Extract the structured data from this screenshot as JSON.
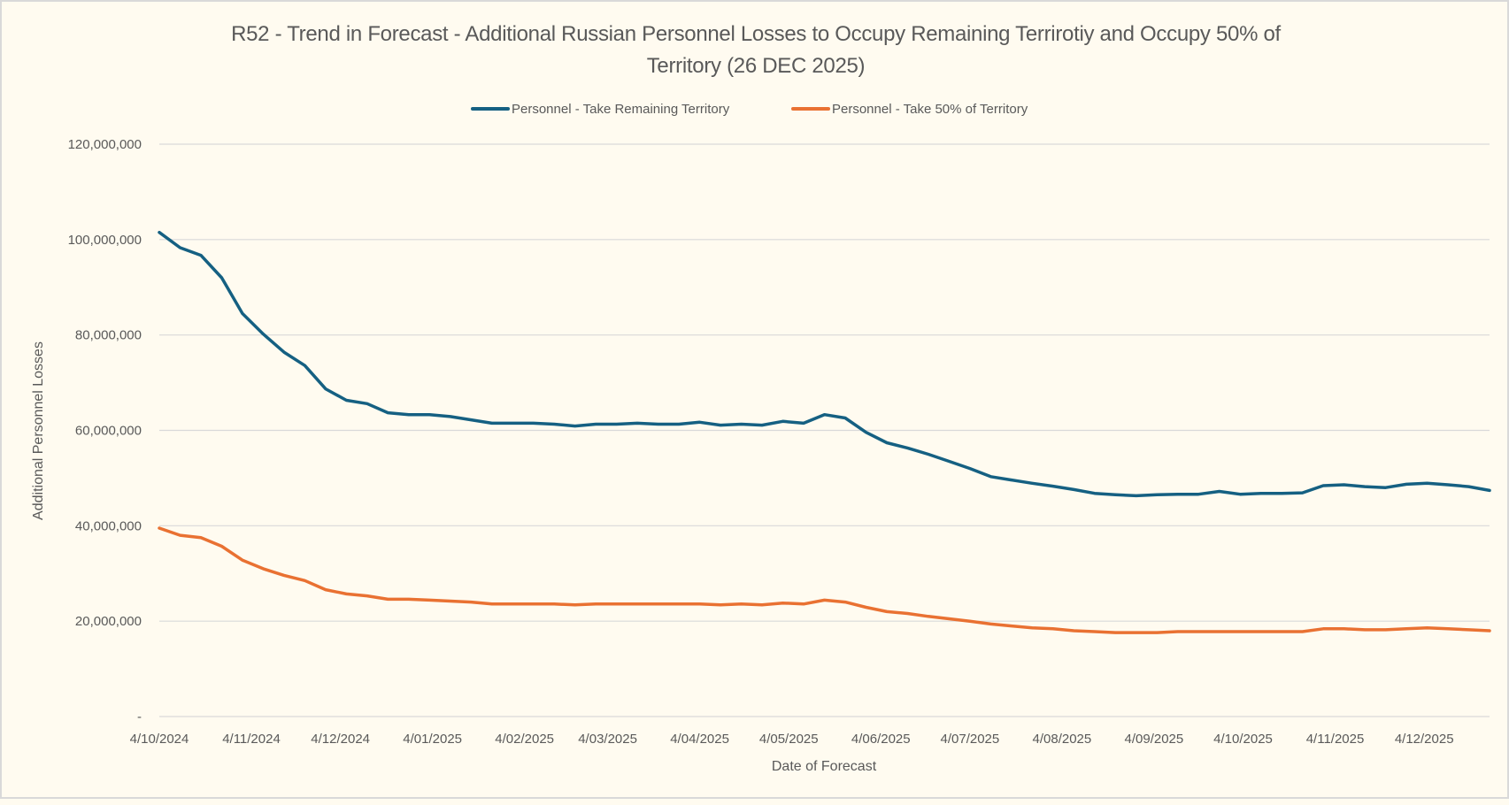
{
  "chart_data": {
    "type": "line",
    "title_line1": "R52 - Trend in Forecast - Additional Russian Personnel Losses to Occupy Remaining Terrirotiy and Occupy 50% of",
    "title_line2": "Territory  (26 DEC 2025)",
    "xlabel": "Date of Forecast",
    "ylabel": "Additional Personnel Losses",
    "ylim": [
      0,
      120000000
    ],
    "yticks": [
      0,
      20000000,
      40000000,
      60000000,
      80000000,
      100000000,
      120000000
    ],
    "ytick_labels": [
      "-",
      "20,000,000",
      "40,000,000",
      "60,000,000",
      "80,000,000",
      "100,000,000",
      "120,000,000"
    ],
    "xlim": [
      "2024-10-04",
      "2025-12-26"
    ],
    "xticks": [
      "2024-10-04",
      "2024-11-04",
      "2024-12-04",
      "2025-01-04",
      "2025-02-04",
      "2025-03-04",
      "2025-04-04",
      "2025-05-04",
      "2025-06-04",
      "2025-07-04",
      "2025-08-04",
      "2025-09-04",
      "2025-10-04",
      "2025-11-04",
      "2025-12-04"
    ],
    "xtick_labels": [
      "4/10/2024",
      "4/11/2024",
      "4/12/2024",
      "4/01/2025",
      "4/02/2025",
      "4/03/2025",
      "4/04/2025",
      "4/05/2025",
      "4/06/2025",
      "4/07/2025",
      "4/08/2025",
      "4/09/2025",
      "4/10/2025",
      "4/11/2025",
      "4/12/2025"
    ],
    "grid": "horizontal",
    "legend_position": "top",
    "x": [
      "2024-10-04",
      "2024-10-11",
      "2024-10-18",
      "2024-10-25",
      "2024-11-01",
      "2024-11-08",
      "2024-11-15",
      "2024-11-22",
      "2024-11-29",
      "2024-12-06",
      "2024-12-13",
      "2024-12-20",
      "2024-12-27",
      "2025-01-03",
      "2025-01-10",
      "2025-01-17",
      "2025-01-24",
      "2025-01-31",
      "2025-02-07",
      "2025-02-14",
      "2025-02-21",
      "2025-02-28",
      "2025-03-07",
      "2025-03-14",
      "2025-03-21",
      "2025-03-28",
      "2025-04-04",
      "2025-04-11",
      "2025-04-18",
      "2025-04-25",
      "2025-05-02",
      "2025-05-09",
      "2025-05-16",
      "2025-05-23",
      "2025-05-30",
      "2025-06-06",
      "2025-06-13",
      "2025-06-20",
      "2025-06-27",
      "2025-07-04",
      "2025-07-11",
      "2025-07-18",
      "2025-07-25",
      "2025-08-01",
      "2025-08-08",
      "2025-08-15",
      "2025-08-22",
      "2025-08-29",
      "2025-09-05",
      "2025-09-12",
      "2025-09-19",
      "2025-09-26",
      "2025-10-03",
      "2025-10-10",
      "2025-10-17",
      "2025-10-24",
      "2025-10-31",
      "2025-11-07",
      "2025-11-14",
      "2025-11-21",
      "2025-11-28",
      "2025-12-05",
      "2025-12-12",
      "2025-12-19",
      "2025-12-26"
    ],
    "series": [
      {
        "name": "Personnel - Take Remaining Territory",
        "color": "#156082",
        "values": [
          101500000,
          98300000,
          96700000,
          92000000,
          84500000,
          80200000,
          76400000,
          73600000,
          68700000,
          66300000,
          65600000,
          63700000,
          63300000,
          63300000,
          62900000,
          62200000,
          61500000,
          61500000,
          61500000,
          61300000,
          60900000,
          61300000,
          61300000,
          61500000,
          61300000,
          61300000,
          61700000,
          61100000,
          61300000,
          61100000,
          61900000,
          61500000,
          63300000,
          62600000,
          59600000,
          57400000,
          56300000,
          55000000,
          53500000,
          52000000,
          50300000,
          49600000,
          48900000,
          48300000,
          47600000,
          46800000,
          46500000,
          46300000,
          46500000,
          46600000,
          46600000,
          47200000,
          46600000,
          46800000,
          46800000,
          46900000,
          48400000,
          48600000,
          48200000,
          48000000,
          48700000,
          48900000,
          48600000,
          48200000,
          47400000
        ]
      },
      {
        "name": "Personnel - Take 50% of Territory",
        "color": "#E97132",
        "values": [
          39500000,
          38000000,
          37500000,
          35700000,
          32800000,
          31000000,
          29600000,
          28500000,
          26600000,
          25700000,
          25300000,
          24600000,
          24600000,
          24400000,
          24200000,
          24000000,
          23600000,
          23600000,
          23600000,
          23600000,
          23400000,
          23600000,
          23600000,
          23600000,
          23600000,
          23600000,
          23600000,
          23400000,
          23600000,
          23400000,
          23800000,
          23600000,
          24400000,
          24000000,
          22900000,
          22000000,
          21600000,
          21000000,
          20500000,
          20000000,
          19400000,
          19000000,
          18600000,
          18400000,
          18000000,
          17800000,
          17600000,
          17600000,
          17600000,
          17800000,
          17800000,
          17800000,
          17800000,
          17800000,
          17800000,
          17800000,
          18400000,
          18400000,
          18200000,
          18200000,
          18400000,
          18600000,
          18400000,
          18200000,
          18000000
        ]
      }
    ],
    "colors": {
      "background": "#FFFBF0",
      "gridline": "#D9D9D9",
      "text": "#595959"
    }
  }
}
